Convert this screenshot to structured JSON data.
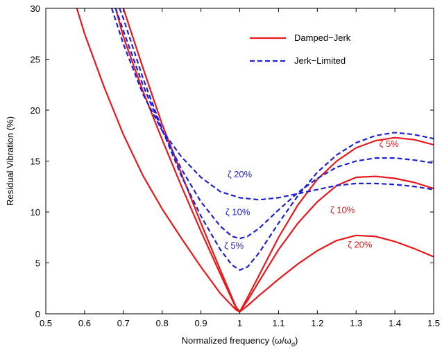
{
  "chart_data": {
    "type": "line",
    "xlabel": "Normalized frequency (ω/ω",
    "xlabel_sub": "d",
    "xlabel_close": ")",
    "ylabel": "Residual Vibration (%)",
    "xlim": [
      0.5,
      1.5
    ],
    "ylim": [
      0,
      30
    ],
    "x_ticks": [
      0.5,
      0.6,
      0.7,
      0.8,
      0.9,
      1.0,
      1.1,
      1.2,
      1.3,
      1.4,
      1.5
    ],
    "x_tick_labels": [
      "0.5",
      "0.6",
      "0.7",
      "0.8",
      "0.9",
      "1",
      "1.1",
      "1.2",
      "1.3",
      "1.4",
      "1.5"
    ],
    "y_ticks": [
      0,
      5,
      10,
      15,
      20,
      25,
      30
    ],
    "y_tick_labels": [
      "0",
      "5",
      "10",
      "15",
      "20",
      "25",
      "30"
    ],
    "grid": false,
    "legend_position": "top-right",
    "legend": [
      {
        "label": "Damped−Jerk",
        "color": "#e8181b",
        "dash": "solid"
      },
      {
        "label": "Jerk−Limited",
        "color": "#1f1fd6",
        "dash": "dashed"
      }
    ],
    "series": [
      {
        "color": "#e8181b",
        "dash": "solid",
        "x": [
          0.58,
          0.6,
          0.65,
          0.7,
          0.75,
          0.8,
          0.85,
          0.9,
          0.95,
          0.99,
          1.0,
          1.02,
          1.05,
          1.1,
          1.15,
          1.2,
          1.25,
          1.3,
          1.35,
          1.4,
          1.45,
          1.5
        ],
        "y": [
          30,
          27.5,
          22.3,
          17.6,
          13.6,
          10.3,
          7.4,
          4.6,
          2.0,
          0.4,
          0.2,
          0.8,
          1.8,
          3.4,
          4.9,
          6.2,
          7.2,
          7.7,
          7.6,
          7.1,
          6.4,
          5.6
        ]
      },
      {
        "color": "#e8181b",
        "dash": "solid",
        "x": [
          0.68,
          0.7,
          0.75,
          0.8,
          0.85,
          0.9,
          0.95,
          0.99,
          1.0,
          1.02,
          1.05,
          1.1,
          1.15,
          1.2,
          1.25,
          1.3,
          1.35,
          1.4,
          1.45,
          1.5
        ],
        "y": [
          30,
          27.2,
          21.9,
          17.1,
          12.5,
          8.1,
          3.9,
          0.6,
          0.2,
          1.3,
          3.2,
          6.3,
          8.9,
          11.0,
          12.6,
          13.4,
          13.5,
          13.3,
          12.9,
          12.3
        ]
      },
      {
        "color": "#e8181b",
        "dash": "solid",
        "x": [
          0.7,
          0.75,
          0.8,
          0.85,
          0.9,
          0.95,
          0.99,
          1.0,
          1.02,
          1.05,
          1.1,
          1.15,
          1.2,
          1.25,
          1.3,
          1.35,
          1.4,
          1.45,
          1.5
        ],
        "y": [
          30,
          24.2,
          18.6,
          13.7,
          8.9,
          4.3,
          0.7,
          0.2,
          1.6,
          3.8,
          7.5,
          10.7,
          13.2,
          15.0,
          16.3,
          17.0,
          17.3,
          17.1,
          16.6
        ]
      },
      {
        "color": "#1f1fd6",
        "dash": "dashed",
        "x": [
          0.67,
          0.7,
          0.75,
          0.8,
          0.85,
          0.9,
          0.95,
          1.0,
          1.05,
          1.1,
          1.15,
          1.2,
          1.25,
          1.3,
          1.35,
          1.4,
          1.45,
          1.5
        ],
        "y": [
          30,
          26.5,
          21.6,
          18.0,
          15.4,
          13.4,
          12.0,
          11.4,
          11.2,
          11.4,
          11.8,
          12.2,
          12.6,
          12.8,
          12.8,
          12.7,
          12.5,
          12.2
        ]
      },
      {
        "color": "#1f1fd6",
        "dash": "dashed",
        "x": [
          0.68,
          0.7,
          0.75,
          0.8,
          0.85,
          0.9,
          0.95,
          0.98,
          1.0,
          1.02,
          1.05,
          1.1,
          1.15,
          1.2,
          1.25,
          1.3,
          1.35,
          1.4,
          1.45,
          1.5
        ],
        "y": [
          30,
          27.8,
          22.5,
          18.0,
          14.2,
          11.0,
          8.6,
          7.6,
          7.4,
          7.6,
          8.4,
          10.2,
          11.9,
          13.3,
          14.4,
          15.0,
          15.3,
          15.3,
          15.1,
          14.8
        ]
      },
      {
        "color": "#1f1fd6",
        "dash": "dashed",
        "x": [
          0.69,
          0.7,
          0.75,
          0.8,
          0.85,
          0.9,
          0.95,
          0.98,
          1.0,
          1.02,
          1.05,
          1.1,
          1.15,
          1.2,
          1.25,
          1.3,
          1.35,
          1.4,
          1.45,
          1.5
        ],
        "y": [
          30,
          29.0,
          23.2,
          18.1,
          13.5,
          9.6,
          6.3,
          4.8,
          4.3,
          4.6,
          6.0,
          8.9,
          11.6,
          13.9,
          15.6,
          16.8,
          17.5,
          17.8,
          17.6,
          17.2
        ]
      }
    ],
    "annotations": [
      {
        "text": "ζ 20%",
        "x": 1.0,
        "y": 13.4,
        "color": "#1f1fd6"
      },
      {
        "text": "ζ 10%",
        "x": 0.995,
        "y": 9.7,
        "color": "#1f1fd6"
      },
      {
        "text": "ζ 5%",
        "x": 0.985,
        "y": 6.4,
        "color": "#1f1fd6"
      },
      {
        "text": "ζ 5%",
        "x": 1.385,
        "y": 16.4,
        "color": "#e8181b"
      },
      {
        "text": "ζ 10%",
        "x": 1.265,
        "y": 9.9,
        "color": "#e8181b"
      },
      {
        "text": "ζ 20%",
        "x": 1.31,
        "y": 6.5,
        "color": "#e8181b"
      }
    ]
  }
}
